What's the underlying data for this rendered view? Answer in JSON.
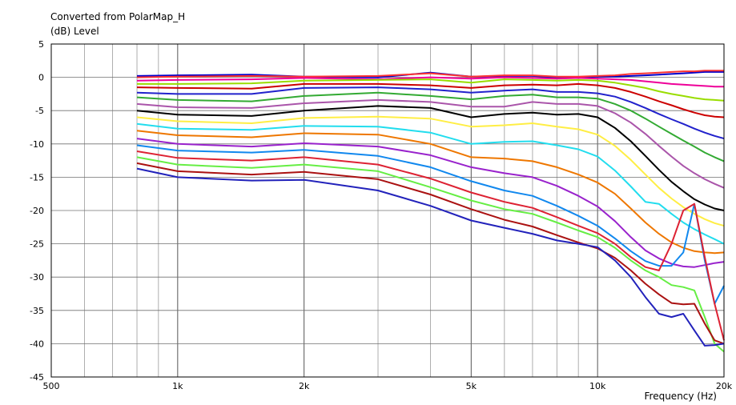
{
  "chart_data": {
    "type": "line",
    "title": "Converted from PolarMap_H",
    "ylabel": "(dB)  Level",
    "xlabel": "Frequency  (Hz)",
    "x_scale": "log",
    "xlim": [
      500,
      20000
    ],
    "ylim": [
      -45,
      5
    ],
    "grid": true,
    "x_ticks": [
      500,
      1000,
      2000,
      5000,
      10000,
      20000
    ],
    "x_tick_labels": [
      "500",
      "1k",
      "2k",
      "5k",
      "10k",
      "20k"
    ],
    "y_ticks": [
      5,
      0,
      -5,
      -10,
      -15,
      -20,
      -25,
      -30,
      -35,
      -40,
      -45
    ],
    "y_tick_labels": [
      "5",
      "0",
      "-5",
      "-10",
      "-15",
      "-20",
      "-25",
      "-30",
      "-35",
      "-40",
      "-45"
    ],
    "x": [
      800,
      1000,
      1500,
      2000,
      3000,
      4000,
      5000,
      6000,
      7000,
      8000,
      9000,
      10000,
      11000,
      12000,
      13000,
      14000,
      15000,
      16000,
      17000,
      18000,
      19000,
      20000
    ],
    "series": [
      {
        "color": "#0000cc",
        "values": [
          0.2,
          0.3,
          0.4,
          0.1,
          0.0,
          0.7,
          0.1,
          0.2,
          0.2,
          0.0,
          0.0,
          0.1,
          0.1,
          0.2,
          0.3,
          0.4,
          0.5,
          0.6,
          0.7,
          0.8,
          0.8,
          0.8
        ]
      },
      {
        "color": "#ff3333",
        "values": [
          0.0,
          0.1,
          0.2,
          0.1,
          0.2,
          0.6,
          0.1,
          0.3,
          0.3,
          0.1,
          0.1,
          0.2,
          0.3,
          0.5,
          0.6,
          0.7,
          0.8,
          0.9,
          0.9,
          1.0,
          1.0,
          1.0
        ]
      },
      {
        "color": "#ee0099",
        "values": [
          -0.5,
          -0.4,
          -0.3,
          -0.1,
          -0.3,
          0.0,
          -0.2,
          0.0,
          -0.1,
          -0.2,
          -0.1,
          -0.2,
          -0.3,
          -0.4,
          -0.6,
          -0.8,
          -1.0,
          -1.1,
          -1.2,
          -1.3,
          -1.4,
          -1.4
        ]
      },
      {
        "color": "#99dd00",
        "values": [
          -1.0,
          -1.0,
          -0.9,
          -0.5,
          -0.4,
          -0.3,
          -0.8,
          -0.3,
          -0.4,
          -0.5,
          -0.4,
          -0.5,
          -0.8,
          -1.2,
          -1.6,
          -2.1,
          -2.5,
          -2.8,
          -3.1,
          -3.3,
          -3.4,
          -3.5
        ]
      },
      {
        "color": "#cc0000",
        "values": [
          -1.5,
          -1.6,
          -1.7,
          -1.0,
          -1.0,
          -1.2,
          -1.6,
          -1.2,
          -1.1,
          -1.2,
          -1.0,
          -1.2,
          -1.6,
          -2.2,
          -2.9,
          -3.6,
          -4.2,
          -4.8,
          -5.3,
          -5.7,
          -5.9,
          -6.0
        ]
      },
      {
        "color": "#2222cc",
        "values": [
          -2.3,
          -2.5,
          -2.5,
          -1.6,
          -1.5,
          -1.8,
          -2.3,
          -2.0,
          -1.8,
          -2.2,
          -2.2,
          -2.4,
          -2.9,
          -3.7,
          -4.6,
          -5.5,
          -6.3,
          -7.0,
          -7.7,
          -8.3,
          -8.8,
          -9.2
        ]
      },
      {
        "color": "#33aa33",
        "values": [
          -3.0,
          -3.4,
          -3.6,
          -2.8,
          -2.3,
          -2.8,
          -3.3,
          -2.8,
          -2.6,
          -3.0,
          -3.0,
          -3.2,
          -4.0,
          -5.0,
          -6.2,
          -7.4,
          -8.5,
          -9.5,
          -10.4,
          -11.3,
          -12.0,
          -12.6
        ]
      },
      {
        "color": "#aa55aa",
        "values": [
          -4.0,
          -4.5,
          -4.6,
          -3.9,
          -3.4,
          -3.7,
          -4.4,
          -4.4,
          -3.7,
          -4.0,
          -4.0,
          -4.3,
          -5.4,
          -6.8,
          -8.5,
          -10.3,
          -11.9,
          -13.3,
          -14.4,
          -15.3,
          -16.0,
          -16.6
        ]
      },
      {
        "color": "#000000",
        "values": [
          -5.0,
          -5.6,
          -5.8,
          -5.0,
          -4.3,
          -4.6,
          -6.0,
          -5.5,
          -5.3,
          -5.6,
          -5.5,
          -6.0,
          -7.6,
          -9.6,
          -11.8,
          -13.9,
          -15.7,
          -17.1,
          -18.3,
          -19.1,
          -19.7,
          -20.0
        ]
      },
      {
        "color": "#ffee44",
        "values": [
          -6.0,
          -6.6,
          -6.9,
          -6.1,
          -5.9,
          -6.2,
          -7.4,
          -7.2,
          -6.9,
          -7.4,
          -7.8,
          -8.6,
          -10.3,
          -12.4,
          -14.6,
          -16.6,
          -18.2,
          -19.5,
          -20.5,
          -21.3,
          -21.9,
          -22.3
        ]
      },
      {
        "color": "#22ddee",
        "values": [
          -7.0,
          -7.7,
          -7.9,
          -7.3,
          -7.4,
          -8.3,
          -10.0,
          -9.7,
          -9.6,
          -10.2,
          -10.8,
          -11.9,
          -14.0,
          -16.4,
          -18.7,
          -19.0,
          -20.5,
          -21.8,
          -22.8,
          -23.6,
          -24.3,
          -25.0
        ]
      },
      {
        "color": "#ee7700",
        "values": [
          -8.0,
          -8.7,
          -9.0,
          -8.4,
          -8.6,
          -10.0,
          -12.0,
          -12.2,
          -12.6,
          -13.5,
          -14.6,
          -15.8,
          -17.5,
          -19.7,
          -21.8,
          -23.5,
          -24.8,
          -25.6,
          -26.1,
          -26.3,
          -26.4,
          -26.3
        ]
      },
      {
        "color": "#9922cc",
        "values": [
          -9.2,
          -10.0,
          -10.4,
          -9.9,
          -10.4,
          -11.7,
          -13.5,
          -14.4,
          -15.0,
          -16.3,
          -17.8,
          -19.4,
          -21.6,
          -24.0,
          -26.0,
          -27.2,
          -28.0,
          -28.4,
          -28.5,
          -28.2,
          -27.9,
          -27.7
        ]
      },
      {
        "color": "#1188ee",
        "values": [
          -10.2,
          -11.0,
          -11.3,
          -10.9,
          -11.8,
          -13.5,
          -15.6,
          -17.0,
          -17.8,
          -19.3,
          -20.8,
          -22.3,
          -24.2,
          -26.1,
          -27.6,
          -28.3,
          -28.3,
          -26.3,
          -19.0,
          -27.5,
          -34.0,
          -31.3
        ]
      },
      {
        "color": "#dd2233",
        "values": [
          -11.1,
          -12.1,
          -12.5,
          -12.0,
          -13.1,
          -15.2,
          -17.3,
          -18.7,
          -19.6,
          -21.0,
          -22.3,
          -23.4,
          -25.0,
          -27.0,
          -28.5,
          -29.0,
          -25.0,
          -20.0,
          -19.0,
          -27.0,
          -34.0,
          -39.5
        ]
      },
      {
        "color": "#66ee44",
        "values": [
          -12.0,
          -13.1,
          -13.6,
          -13.1,
          -14.1,
          -16.5,
          -18.5,
          -19.8,
          -20.5,
          -21.8,
          -23.0,
          -24.0,
          -25.6,
          -27.5,
          -29.0,
          -30.0,
          -31.2,
          -31.5,
          -32.0,
          -36.0,
          -40.0,
          -41.2
        ]
      },
      {
        "color": "#aa1111",
        "values": [
          -12.9,
          -14.1,
          -14.6,
          -14.2,
          -15.3,
          -17.6,
          -19.8,
          -21.4,
          -22.4,
          -23.7,
          -24.8,
          -25.7,
          -27.1,
          -29.0,
          -31.0,
          -32.6,
          -33.9,
          -34.1,
          -34.0,
          -37.0,
          -39.5,
          -40.0
        ]
      },
      {
        "color": "#2222bb",
        "values": [
          -13.7,
          -15.0,
          -15.5,
          -15.4,
          -17.0,
          -19.3,
          -21.5,
          -22.6,
          -23.5,
          -24.5,
          -25.0,
          -25.5,
          -27.5,
          -30.0,
          -33.0,
          -35.5,
          -36.0,
          -35.5,
          -38.0,
          -40.3,
          -40.2,
          -40.0
        ]
      }
    ]
  }
}
